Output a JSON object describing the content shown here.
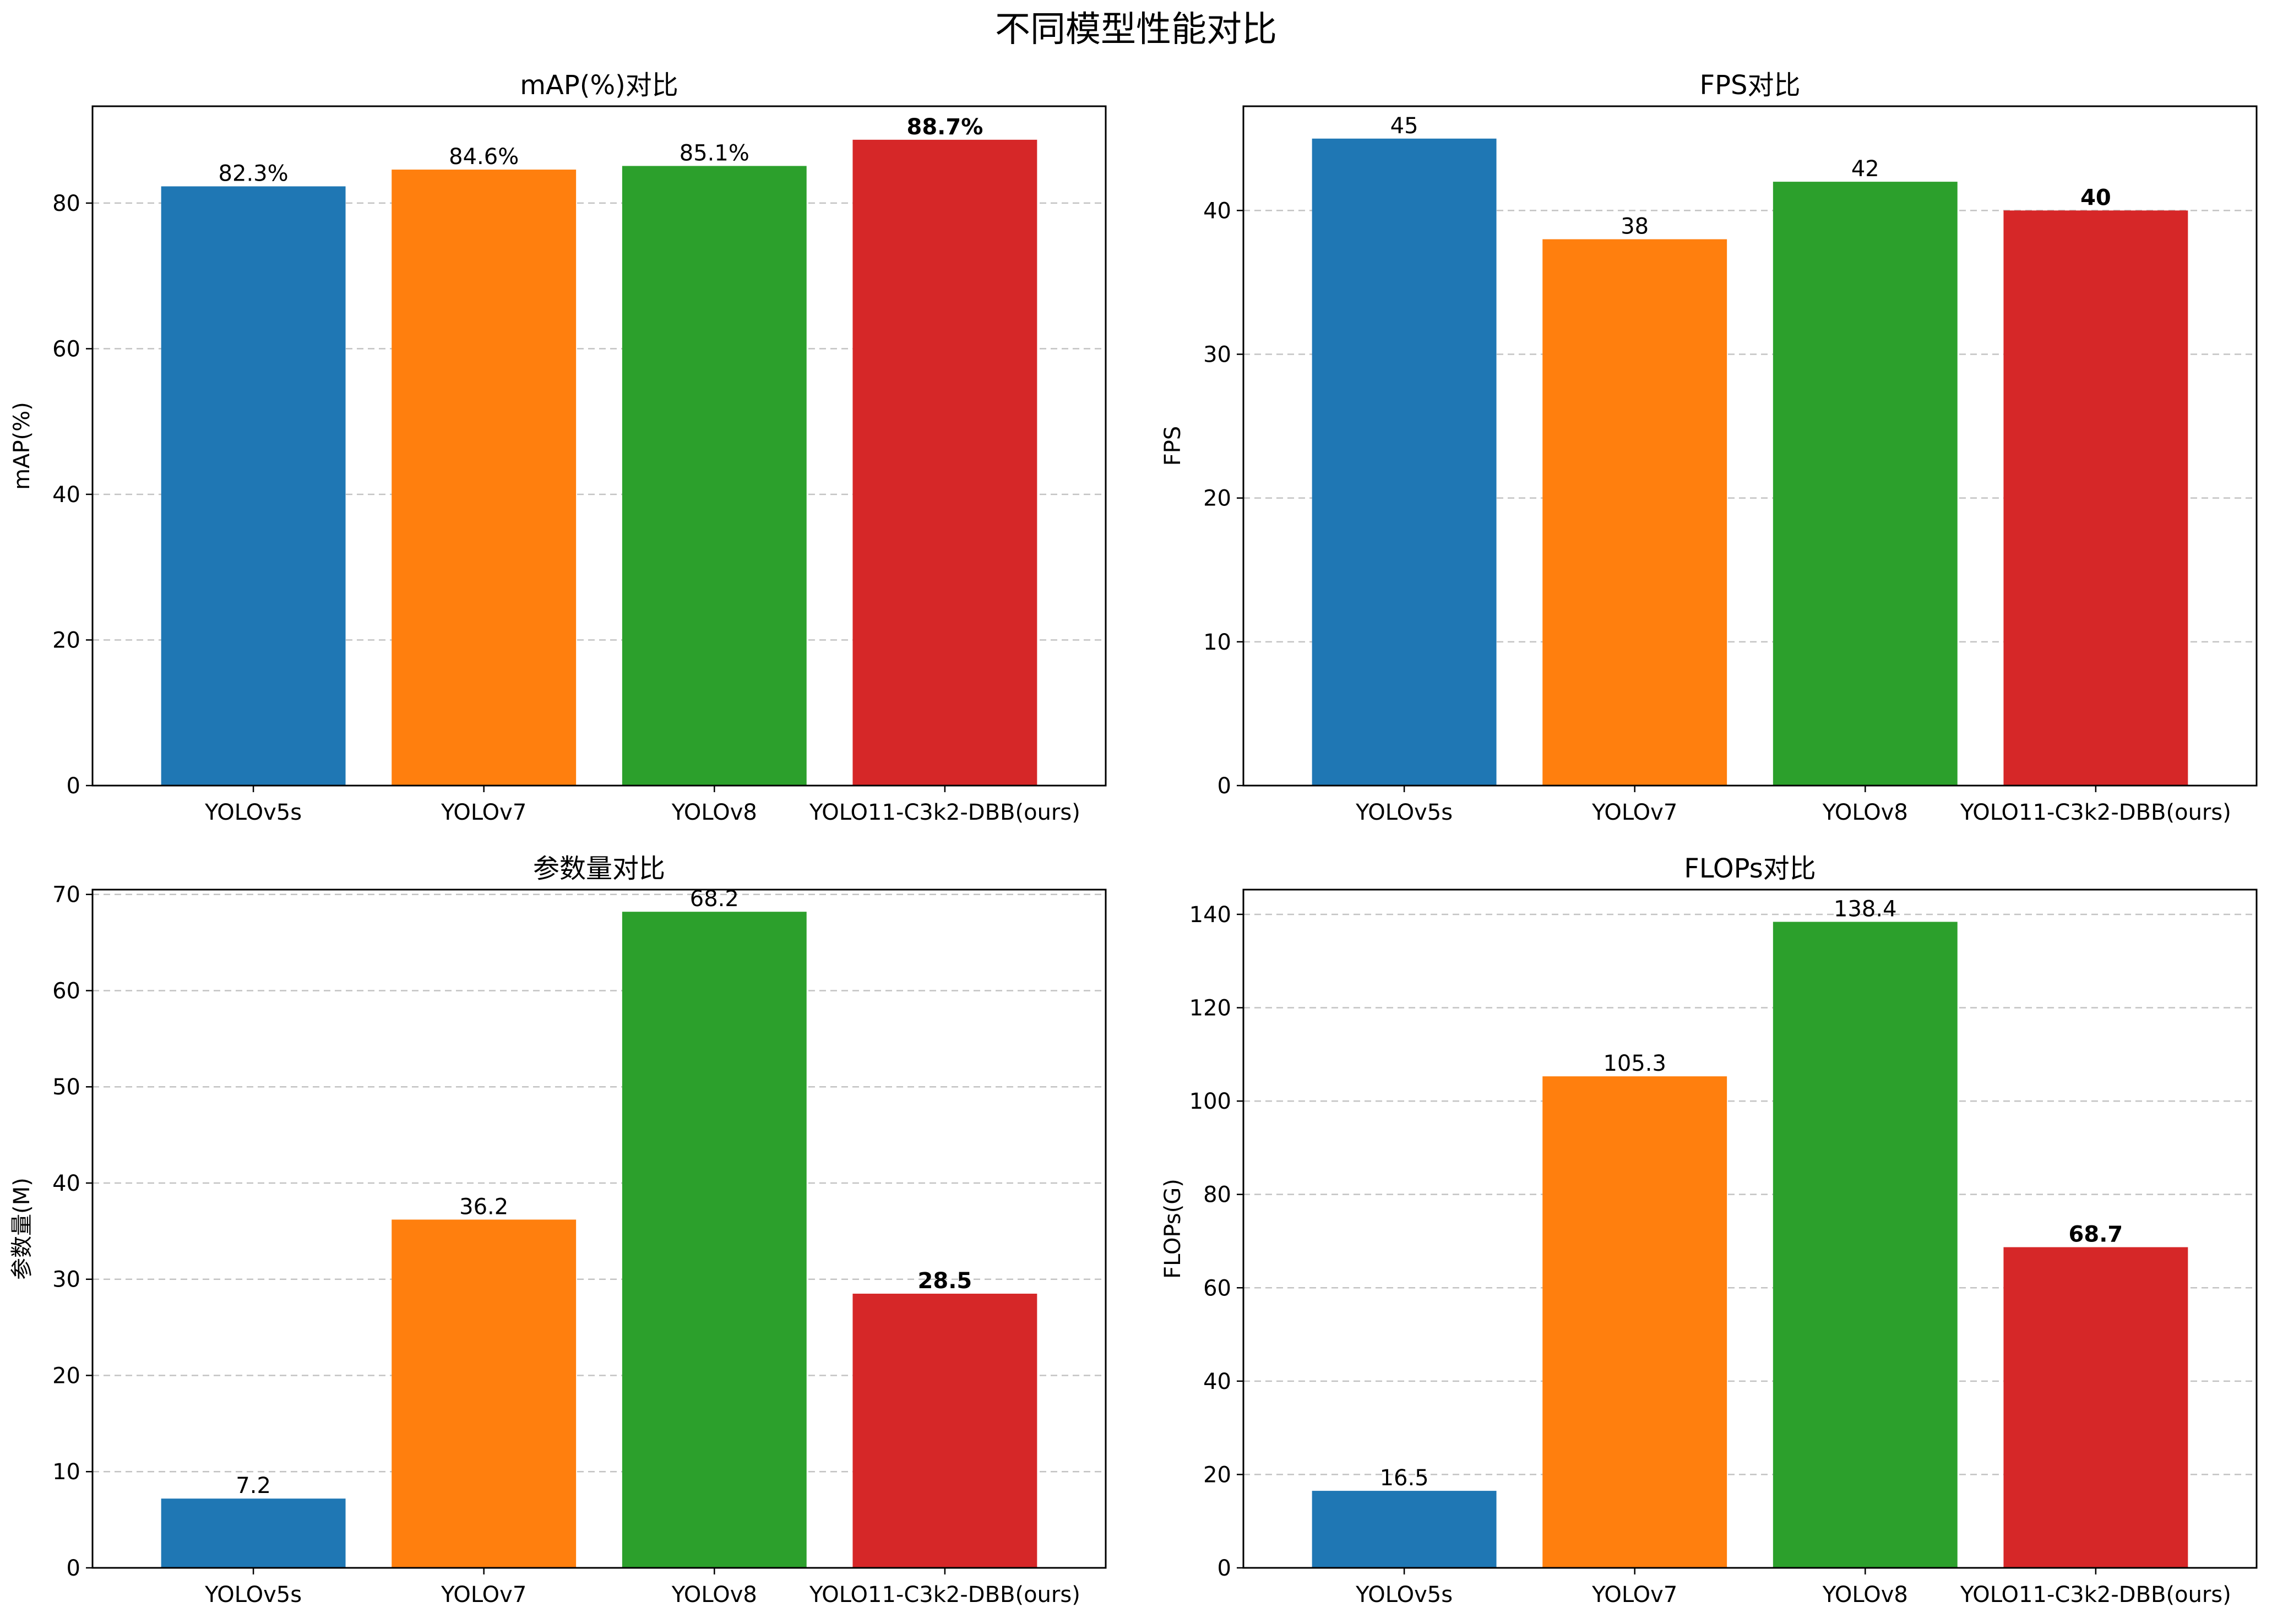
{
  "figure": {
    "title": "不同模型性能对比"
  },
  "colors": {
    "blue": "#1f77b4",
    "orange": "#ff7f0e",
    "green": "#2ca02c",
    "red": "#d62728",
    "grid": "#b0b0b0",
    "axis": "#000000"
  },
  "chart_data": [
    {
      "type": "bar",
      "title": "mAP(%)对比",
      "xlabel": "",
      "ylabel": "mAP(%)",
      "categories": [
        "YOLOv5s",
        "YOLOv7",
        "YOLOv8",
        "YOLO11-C3k2-DBB(ours)"
      ],
      "values": [
        82.3,
        84.6,
        85.1,
        88.7
      ],
      "value_labels": [
        "82.3%",
        "84.6%",
        "85.1%",
        "88.7%"
      ],
      "bold_index": 3,
      "ylim": [
        0,
        93.3
      ],
      "yticks": [
        0,
        20,
        40,
        60,
        80
      ],
      "grid": "y-dashed"
    },
    {
      "type": "bar",
      "title": "FPS对比",
      "xlabel": "",
      "ylabel": "FPS",
      "categories": [
        "YOLOv5s",
        "YOLOv7",
        "YOLOv8",
        "YOLO11-C3k2-DBB(ours)"
      ],
      "values": [
        45,
        38,
        42,
        40
      ],
      "value_labels": [
        "45",
        "38",
        "42",
        "40"
      ],
      "bold_index": 3,
      "ylim": [
        0,
        47.25
      ],
      "yticks": [
        0,
        10,
        20,
        30,
        40
      ],
      "grid": "y-dashed"
    },
    {
      "type": "bar",
      "title": "参数量对比",
      "xlabel": "",
      "ylabel": "参数量(M)",
      "categories": [
        "YOLOv5s",
        "YOLOv7",
        "YOLOv8",
        "YOLO11-C3k2-DBB(ours)"
      ],
      "values": [
        7.2,
        36.2,
        68.2,
        28.5
      ],
      "value_labels": [
        "7.2",
        "36.2",
        "68.2",
        "28.5"
      ],
      "bold_index": 3,
      "ylim": [
        0,
        70.5
      ],
      "yticks": [
        0,
        10,
        20,
        30,
        40,
        50,
        60,
        70
      ],
      "grid": "y-dashed"
    },
    {
      "type": "bar",
      "title": "FLOPs对比",
      "xlabel": "",
      "ylabel": "FLOPs(G)",
      "categories": [
        "YOLOv5s",
        "YOLOv7",
        "YOLOv8",
        "YOLO11-C3k2-DBB(ours)"
      ],
      "values": [
        16.5,
        105.3,
        138.4,
        68.7
      ],
      "value_labels": [
        "16.5",
        "105.3",
        "138.4",
        "68.7"
      ],
      "bold_index": 3,
      "ylim": [
        0,
        145.3
      ],
      "yticks": [
        0,
        20,
        40,
        60,
        80,
        100,
        120,
        140
      ],
      "grid": "y-dashed"
    }
  ]
}
